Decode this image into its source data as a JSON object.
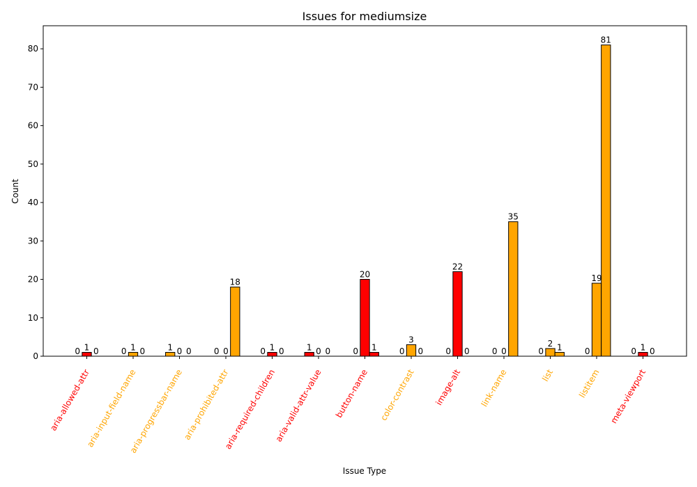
{
  "chart_data": {
    "type": "bar",
    "title": "Issues for mediumsize",
    "xlabel": "Issue Type",
    "ylabel": "Count",
    "ylim": [
      0,
      86
    ],
    "yticks": [
      0,
      10,
      20,
      30,
      40,
      50,
      60,
      70,
      80
    ],
    "categories": [
      "aria-allowed-attr",
      "aria-input-field-name",
      "aria-progressbar-name",
      "aria-prohibited-attr",
      "aria-required-children",
      "aria-valid-attr-value",
      "button-name",
      "color-contrast",
      "image-alt",
      "link-name",
      "list",
      "listitem",
      "meta-viewport"
    ],
    "category_colors": [
      "#ff0000",
      "#ffa500",
      "#ffa500",
      "#ffa500",
      "#ff0000",
      "#ff0000",
      "#ff0000",
      "#ffa500",
      "#ff0000",
      "#ffa500",
      "#ffa500",
      "#ffa500",
      "#ff0000"
    ],
    "series": [
      {
        "values": [
          0,
          0,
          1,
          0,
          0,
          1,
          0,
          0,
          0,
          0,
          0,
          0,
          0
        ]
      },
      {
        "values": [
          1,
          1,
          0,
          0,
          1,
          0,
          20,
          3,
          22,
          0,
          2,
          19,
          1
        ]
      },
      {
        "values": [
          0,
          0,
          0,
          18,
          0,
          0,
          1,
          0,
          0,
          35,
          1,
          81,
          0
        ]
      }
    ],
    "grid": false
  }
}
